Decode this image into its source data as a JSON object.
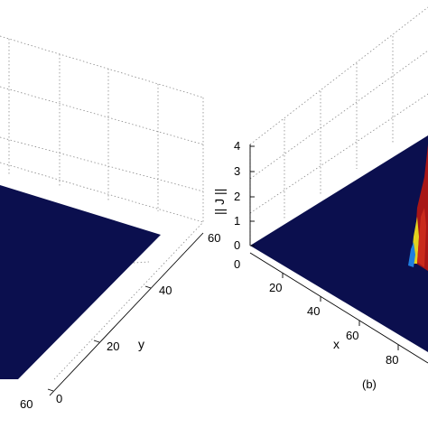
{
  "chart_data": [
    {
      "type": "surface",
      "panel": "left",
      "title": "",
      "ylabel": "y",
      "y_ticks": [
        "0",
        "20",
        "40",
        "60"
      ],
      "x_ticks_visible": [
        "60"
      ],
      "surface_value": 0,
      "colors": {
        "surface": "#0b0f4e"
      }
    },
    {
      "type": "surface",
      "panel": "right",
      "title": "",
      "caption": "(b)",
      "xlabel": "x",
      "zlabel": "|| J ||",
      "x_ticks": [
        "0",
        "20",
        "40",
        "60",
        "80"
      ],
      "z_ticks": [
        "0",
        "1",
        "2",
        "3",
        "4"
      ],
      "zlim": [
        0,
        4
      ],
      "surface_value_background": 0,
      "peak": {
        "x_approx": 100,
        "z_max": 4
      },
      "colors": {
        "surface": "#0b0f4e",
        "peak_high": "#a81616",
        "peak_mid": "#e2d21e",
        "peak_low": "#1f7fe0"
      }
    }
  ]
}
